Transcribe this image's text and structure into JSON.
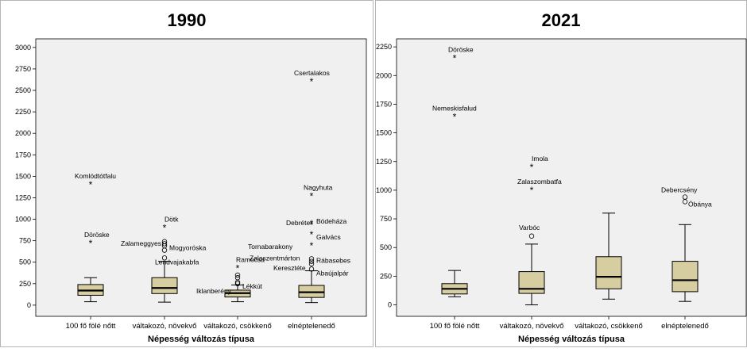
{
  "chart_data": [
    {
      "type": "box",
      "title": "1990",
      "xlabel": "Népesség változás típusa",
      "ylabel": "",
      "categories": [
        "100 fő fölé nőtt",
        "váltakozó, növekvő",
        "váltakozó, csökkenő",
        "elnéptelenedő"
      ],
      "ylim": [
        -130,
        3100
      ],
      "yticks": [
        0,
        250,
        500,
        750,
        1000,
        1250,
        1500,
        1750,
        2000,
        2250,
        2500,
        2750,
        3000
      ],
      "grid": false,
      "boxes": [
        {
          "whisker_low": 40,
          "q1": 115,
          "median": 170,
          "q3": 240,
          "whisker_high": 320
        },
        {
          "whisker_low": 35,
          "q1": 135,
          "median": 200,
          "q3": 320,
          "whisker_high": 510
        },
        {
          "whisker_low": 40,
          "q1": 95,
          "median": 140,
          "q3": 175,
          "whisker_high": 235
        },
        {
          "whisker_low": 30,
          "q1": 90,
          "median": 150,
          "q3": 230,
          "whisker_high": 400
        }
      ],
      "outliers": [
        {
          "category": 0,
          "value": 1400,
          "label": "Komlódtótfalu",
          "marker": "star"
        },
        {
          "category": 0,
          "value": 720,
          "label": "Döröske",
          "marker": "star"
        },
        {
          "category": 1,
          "value": 900,
          "label": "Dötk",
          "marker": "star"
        },
        {
          "category": 1,
          "value": 740,
          "label": "",
          "marker": "circle"
        },
        {
          "category": 1,
          "value": 715,
          "label": "",
          "marker": "circle"
        },
        {
          "category": 1,
          "value": 690,
          "label": "Zalameggyes",
          "marker": "circle"
        },
        {
          "category": 1,
          "value": 640,
          "label": "Mogyoróska",
          "marker": "circle"
        },
        {
          "category": 1,
          "value": 550,
          "label": "Lendvajakabfa",
          "marker": "circle"
        },
        {
          "category": 2,
          "value": 430,
          "label": "Ramocsa",
          "marker": "star"
        },
        {
          "category": 2,
          "value": 350,
          "label": "",
          "marker": "circle"
        },
        {
          "category": 2,
          "value": 320,
          "label": "",
          "marker": "circle"
        },
        {
          "category": 2,
          "value": 250,
          "label": "Iklanberény",
          "marker": "circle"
        },
        {
          "category": 2,
          "value": 265,
          "label": "Lékkút",
          "marker": "circle"
        },
        {
          "category": 3,
          "value": 2600,
          "label": "Csertalakos",
          "marker": "star"
        },
        {
          "category": 3,
          "value": 1270,
          "label": "Nagyhuta",
          "marker": "star"
        },
        {
          "category": 3,
          "value": 950,
          "label": "Bódeháza",
          "marker": "star"
        },
        {
          "category": 3,
          "value": 930,
          "label": "Debréte",
          "marker": "star"
        },
        {
          "category": 3,
          "value": 820,
          "label": "Galvács",
          "marker": "star"
        },
        {
          "category": 3,
          "value": 690,
          "label": "Tornabarakony",
          "marker": "star"
        },
        {
          "category": 3,
          "value": 540,
          "label": "Zalaszentmárton",
          "marker": "circle"
        },
        {
          "category": 3,
          "value": 510,
          "label": "Rábasebes",
          "marker": "circle"
        },
        {
          "category": 3,
          "value": 480,
          "label": "Keresztéte",
          "marker": "circle"
        },
        {
          "category": 3,
          "value": 420,
          "label": "Abaújalpár",
          "marker": "circle"
        }
      ]
    },
    {
      "type": "box",
      "title": "2021",
      "xlabel": "Népesség változás típusa",
      "ylabel": "",
      "categories": [
        "100 fő fölé nőtt",
        "váltakozó, növekvő",
        "váltakozó, csökkenő",
        "elnéptelenedő"
      ],
      "ylim": [
        -100,
        2320
      ],
      "yticks": [
        0,
        250,
        500,
        750,
        1000,
        1250,
        1500,
        1750,
        2000,
        2250
      ],
      "grid": false,
      "boxes": [
        {
          "whisker_low": 70,
          "q1": 95,
          "median": 140,
          "q3": 185,
          "whisker_high": 300
        },
        {
          "whisker_low": 0,
          "q1": 100,
          "median": 140,
          "q3": 290,
          "whisker_high": 530
        },
        {
          "whisker_low": 50,
          "q1": 140,
          "median": 245,
          "q3": 420,
          "whisker_high": 800
        },
        {
          "whisker_low": 30,
          "q1": 115,
          "median": 215,
          "q3": 380,
          "whisker_high": 700
        }
      ],
      "outliers": [
        {
          "category": 0,
          "value": 2150,
          "label": "Döröske",
          "marker": "star"
        },
        {
          "category": 0,
          "value": 1640,
          "label": "Nemeskisfalud",
          "marker": "star"
        },
        {
          "category": 1,
          "value": 1200,
          "label": "Imola",
          "marker": "star"
        },
        {
          "category": 1,
          "value": 1000,
          "label": "Zalaszombatfa",
          "marker": "star"
        },
        {
          "category": 1,
          "value": 600,
          "label": "Varbóc",
          "marker": "circle"
        },
        {
          "category": 3,
          "value": 940,
          "label": "Debercsény",
          "marker": "circle"
        },
        {
          "category": 3,
          "value": 900,
          "label": "Óbánya",
          "marker": "circle"
        }
      ]
    }
  ]
}
